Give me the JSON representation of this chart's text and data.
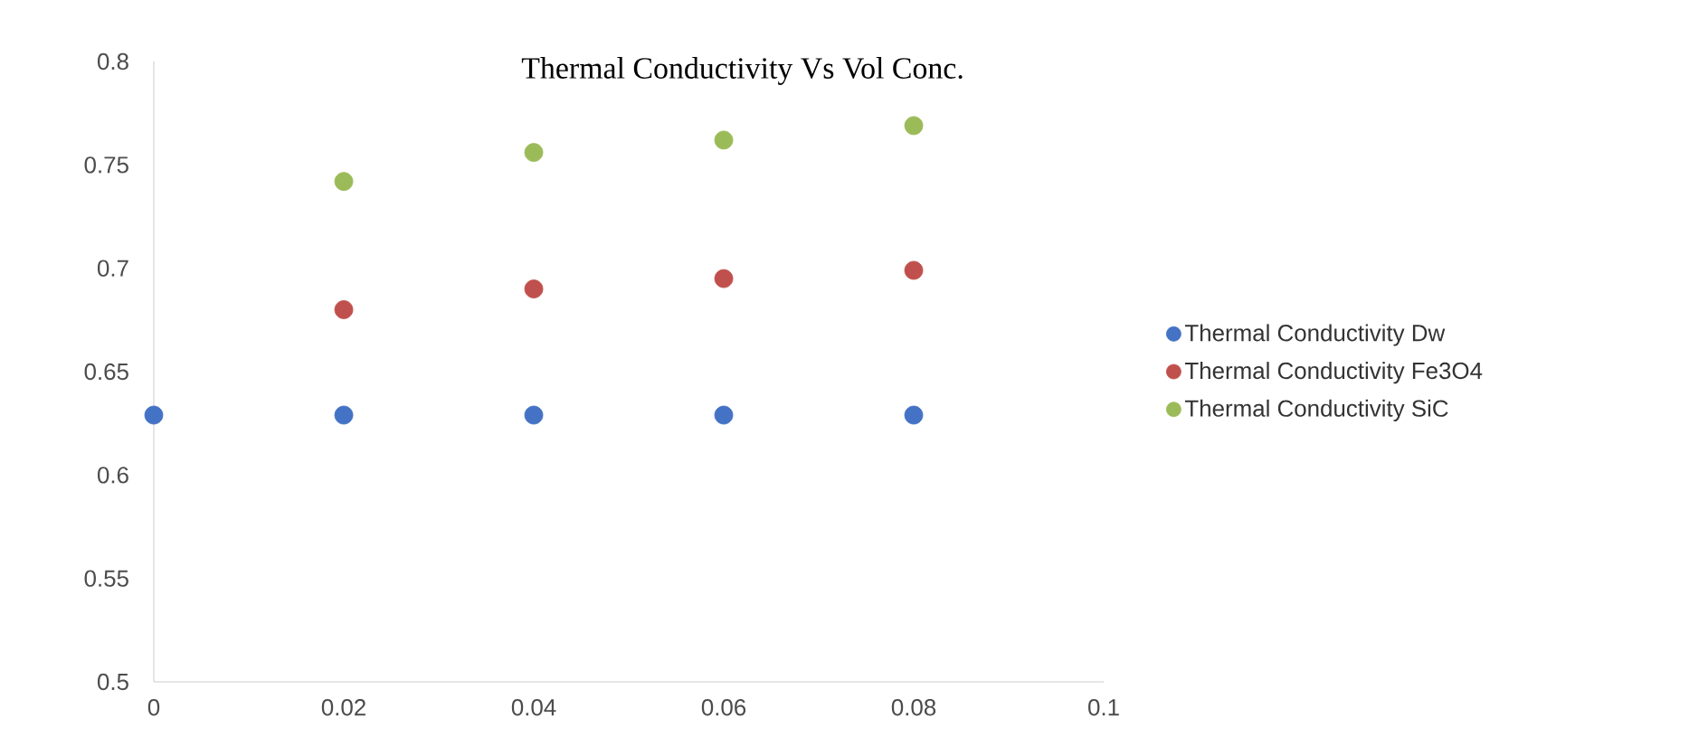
{
  "chart_data": {
    "type": "scatter",
    "title": "Thermal Conductivity Vs Vol Conc.",
    "x": [
      0,
      0.02,
      0.04,
      0.06,
      0.08
    ],
    "series": [
      {
        "name": "Thermal Conductivity Dw",
        "color": "#4472c4",
        "values": [
          0.629,
          0.629,
          0.629,
          0.629,
          0.629
        ]
      },
      {
        "name": "Thermal Conductivity Fe3O4",
        "color": "#c0504d",
        "x": [
          0.02,
          0.04,
          0.06,
          0.08
        ],
        "values": [
          0.68,
          0.69,
          0.695,
          0.699
        ]
      },
      {
        "name": "Thermal Conductivity SiC",
        "color": "#9bbb59",
        "x": [
          0.02,
          0.04,
          0.06,
          0.08
        ],
        "values": [
          0.742,
          0.756,
          0.762,
          0.769
        ]
      }
    ],
    "xlim": [
      0,
      0.1
    ],
    "xticks": [
      0,
      0.02,
      0.04,
      0.06,
      0.08,
      0.1
    ],
    "ylim": [
      0.5,
      0.8
    ],
    "yticks": [
      0.5,
      0.55,
      0.6,
      0.65,
      0.7,
      0.75,
      0.8
    ],
    "grid": false,
    "legend": "right",
    "marker": "circle"
  }
}
